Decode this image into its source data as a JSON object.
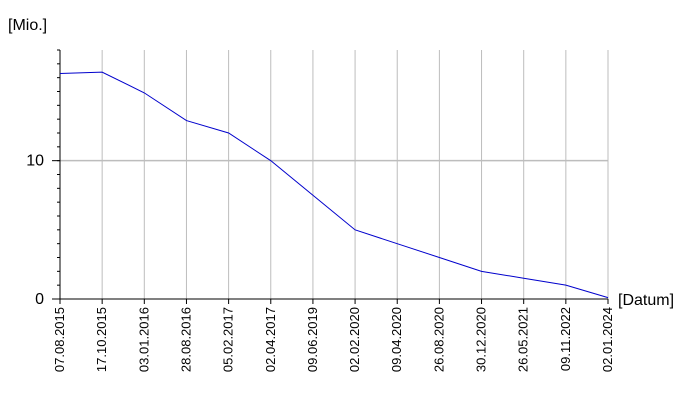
{
  "chart_data": {
    "type": "line",
    "title": "",
    "ylabel": "[Mio.]",
    "xlabel": "[Datum]",
    "categories": [
      "07.08.2015",
      "17.10.2015",
      "03.01.2016",
      "28.08.2016",
      "05.02.2017",
      "02.04.2017",
      "09.06.2019",
      "02.02.2020",
      "09.04.2020",
      "26.08.2020",
      "30.12.2020",
      "26.05.2021",
      "09.11.2022",
      "02.01.2024"
    ],
    "values": [
      16.3,
      16.4,
      14.9,
      12.9,
      12.0,
      10.0,
      7.5,
      5.0,
      4.0,
      3.0,
      2.0,
      1.5,
      1.0,
      0.1
    ],
    "yticks": [
      0,
      10
    ],
    "ylim": [
      0,
      18
    ],
    "grid": true,
    "series_color": "#0000cc"
  }
}
